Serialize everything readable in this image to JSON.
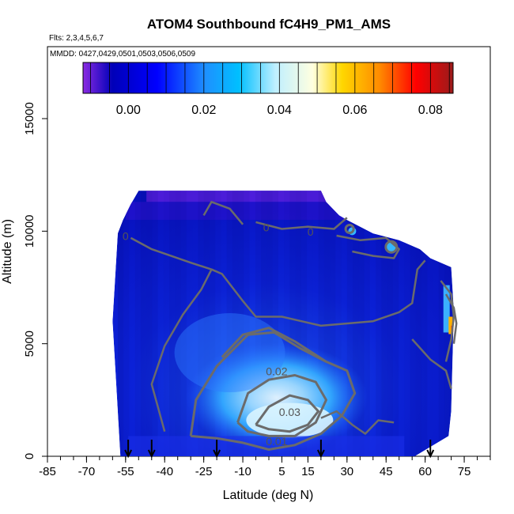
{
  "chart_data": {
    "type": "heatmap",
    "title": "ATOM4 Southbound fC4H9_PM1_AMS",
    "subtitle_flights": "Flts: 2,3,4,5,6,7",
    "subtitle_dates": "MMDD: 0427,0429,0501,0503,0506,0509",
    "xlabel": "Latitude (deg N)",
    "ylabel": "Altitude (m)",
    "xlim": [
      -85,
      85
    ],
    "ylim": [
      0,
      18000
    ],
    "x_ticks": [
      -85,
      -70,
      -55,
      -40,
      -25,
      -10,
      5,
      15,
      30,
      45,
      60,
      75
    ],
    "x_tick_labels": [
      "-85",
      "-70",
      "-55",
      "-40",
      "-25",
      "-10",
      "5",
      "15",
      "30",
      "45",
      "60",
      "75"
    ],
    "y_ticks": [
      0,
      5000,
      10000,
      15000
    ],
    "y_tick_labels": [
      "0",
      "5000",
      "10000",
      "15000"
    ],
    "colorbar": {
      "range": [
        -0.012,
        0.086
      ],
      "ticks": [
        0.0,
        0.02,
        0.04,
        0.06,
        0.08
      ],
      "tick_labels": [
        "0.00",
        "0.02",
        "0.04",
        "0.06",
        "0.08"
      ],
      "colors": [
        "#8b2be2",
        "#0000b8",
        "#0000ff",
        "#1e90ff",
        "#00bfff",
        "#bfefff",
        "#ffffe0",
        "#ffd700",
        "#ff8c00",
        "#ff0000",
        "#9b1b1b"
      ]
    },
    "contours": [
      {
        "level": 0.0,
        "label": "0"
      },
      {
        "level": 0.01,
        "label": "0.01"
      },
      {
        "level": 0.02,
        "label": "0.02"
      },
      {
        "level": 0.03,
        "label": "0.03"
      }
    ],
    "profile_latitudes": [
      -54,
      -45,
      -20,
      20,
      62
    ],
    "data_region": {
      "lat_range": [
        -60,
        70
      ],
      "alt_range": [
        0,
        12000
      ],
      "description_values": {
        "background": 0.006,
        "max_core": 0.035,
        "core_lat": 8,
        "core_alt": 1500
      }
    }
  }
}
